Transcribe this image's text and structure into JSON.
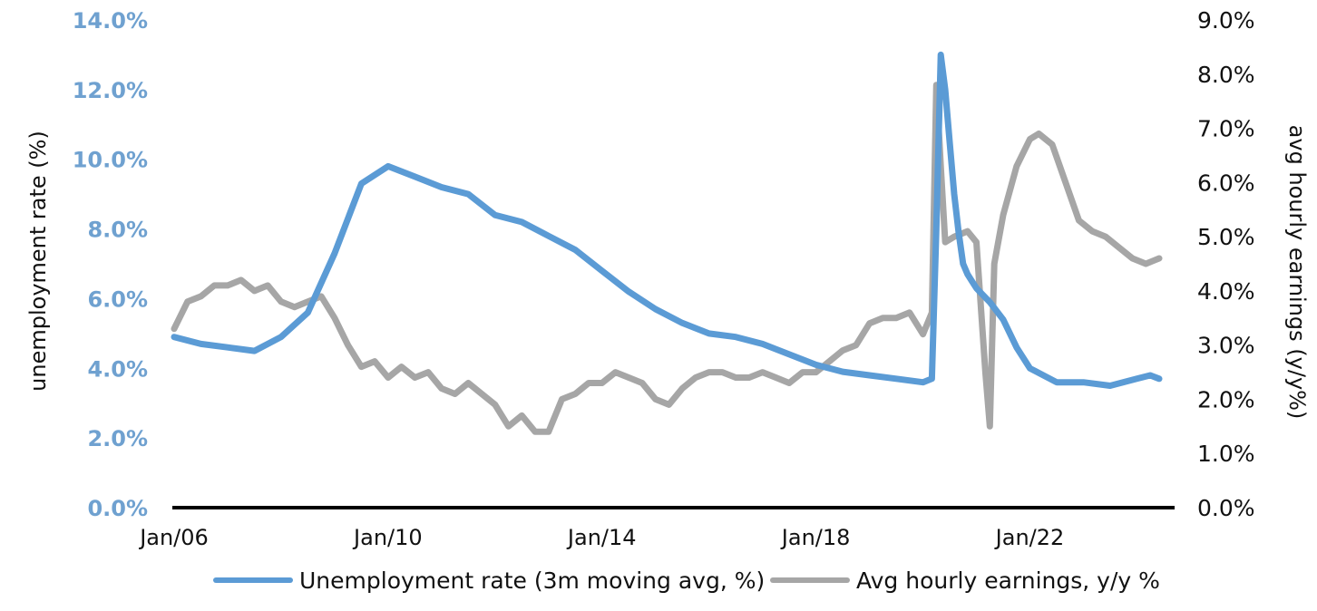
{
  "chart_data": {
    "type": "line",
    "title": "",
    "xlabel": "",
    "ylabel_left": "unemployment rate (%)",
    "ylabel_right": "avg hourly earnings (y/y%)",
    "x_tick_labels": [
      "Jan/06",
      "Jan/10",
      "Jan/14",
      "Jan/18",
      "Jan/22"
    ],
    "ylim_left": [
      0,
      14
    ],
    "ylim_right": [
      0,
      9
    ],
    "left_tick_labels": [
      "0.0%",
      "2.0%",
      "4.0%",
      "6.0%",
      "8.0%",
      "10.0%",
      "12.0%",
      "14.0%"
    ],
    "right_tick_labels": [
      "0.0%",
      "1.0%",
      "2.0%",
      "3.0%",
      "4.0%",
      "5.0%",
      "6.0%",
      "7.0%",
      "8.0%",
      "9.0%"
    ],
    "grid": false,
    "legend_position": "bottom",
    "series": [
      {
        "name": "Unemployment rate (3m moving avg, %)",
        "axis": "left",
        "color": "#5b9bd5",
        "x": [
          "2006-01",
          "2006-07",
          "2007-01",
          "2007-07",
          "2008-01",
          "2008-07",
          "2009-01",
          "2009-07",
          "2010-01",
          "2010-07",
          "2011-01",
          "2011-07",
          "2012-01",
          "2012-07",
          "2013-01",
          "2013-07",
          "2014-01",
          "2014-07",
          "2015-01",
          "2015-07",
          "2016-01",
          "2016-07",
          "2017-01",
          "2017-07",
          "2018-01",
          "2018-07",
          "2019-01",
          "2019-07",
          "2020-01",
          "2020-03",
          "2020-04",
          "2020-05",
          "2020-06",
          "2020-07",
          "2020-08",
          "2020-09",
          "2020-10",
          "2020-11",
          "2020-12",
          "2021-01",
          "2021-04",
          "2021-07",
          "2021-10",
          "2022-01",
          "2022-07",
          "2023-01",
          "2023-07",
          "2024-01",
          "2024-04",
          "2024-06"
        ],
        "values": [
          4.9,
          4.7,
          4.6,
          4.5,
          4.9,
          5.6,
          7.3,
          9.3,
          9.8,
          9.5,
          9.2,
          9.0,
          8.4,
          8.2,
          7.8,
          7.4,
          6.8,
          6.2,
          5.7,
          5.3,
          5.0,
          4.9,
          4.7,
          4.4,
          4.1,
          3.9,
          3.8,
          3.7,
          3.6,
          3.7,
          8.0,
          13.0,
          12.0,
          10.5,
          9.0,
          7.9,
          7.0,
          6.7,
          6.5,
          6.3,
          5.9,
          5.4,
          4.6,
          4.0,
          3.6,
          3.6,
          3.5,
          3.7,
          3.8,
          3.7
        ]
      },
      {
        "name": "Avg hourly earnings, y/y %",
        "axis": "right",
        "color": "#a6a6a6",
        "x": [
          "2006-01",
          "2006-04",
          "2006-07",
          "2006-10",
          "2007-01",
          "2007-04",
          "2007-07",
          "2007-10",
          "2008-01",
          "2008-04",
          "2008-07",
          "2008-10",
          "2009-01",
          "2009-04",
          "2009-07",
          "2009-10",
          "2010-01",
          "2010-04",
          "2010-07",
          "2010-10",
          "2011-01",
          "2011-04",
          "2011-07",
          "2011-10",
          "2012-01",
          "2012-04",
          "2012-07",
          "2012-10",
          "2013-01",
          "2013-04",
          "2013-07",
          "2013-10",
          "2014-01",
          "2014-04",
          "2014-07",
          "2014-10",
          "2015-01",
          "2015-04",
          "2015-07",
          "2015-10",
          "2016-01",
          "2016-04",
          "2016-07",
          "2016-10",
          "2017-01",
          "2017-04",
          "2017-07",
          "2017-10",
          "2018-01",
          "2018-04",
          "2018-07",
          "2018-10",
          "2019-01",
          "2019-04",
          "2019-07",
          "2019-10",
          "2020-01",
          "2020-03",
          "2020-04",
          "2020-05",
          "2020-06",
          "2020-08",
          "2020-11",
          "2021-01",
          "2021-03",
          "2021-04",
          "2021-05",
          "2021-07",
          "2021-10",
          "2022-01",
          "2022-03",
          "2022-06",
          "2022-09",
          "2022-12",
          "2023-03",
          "2023-06",
          "2023-09",
          "2023-12",
          "2024-03",
          "2024-06"
        ],
        "values": [
          3.3,
          3.8,
          3.9,
          4.1,
          4.1,
          4.2,
          4.0,
          4.1,
          3.8,
          3.7,
          3.8,
          3.9,
          3.5,
          3.0,
          2.6,
          2.7,
          2.4,
          2.6,
          2.4,
          2.5,
          2.2,
          2.1,
          2.3,
          2.1,
          1.9,
          1.5,
          1.7,
          1.4,
          1.4,
          2.0,
          2.1,
          2.3,
          2.3,
          2.5,
          2.4,
          2.3,
          2.0,
          1.9,
          2.2,
          2.4,
          2.5,
          2.5,
          2.4,
          2.4,
          2.5,
          2.4,
          2.3,
          2.5,
          2.5,
          2.7,
          2.9,
          3.0,
          3.4,
          3.5,
          3.5,
          3.6,
          3.2,
          3.6,
          7.8,
          6.3,
          4.9,
          5.0,
          5.1,
          4.9,
          2.5,
          1.5,
          4.5,
          5.4,
          6.3,
          6.8,
          6.9,
          6.7,
          6.0,
          5.3,
          5.1,
          5.0,
          4.8,
          4.6,
          4.5,
          4.6
        ]
      }
    ]
  }
}
